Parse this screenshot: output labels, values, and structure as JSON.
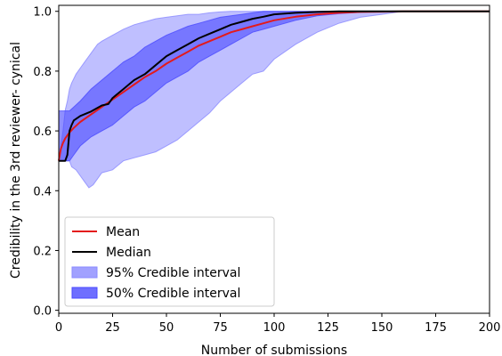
{
  "chart_data": {
    "type": "area",
    "title": "",
    "xlabel": "Number of submissions",
    "ylabel": "Credibility in the 3rd reviewer- cynical",
    "xlim": [
      0,
      200
    ],
    "ylim": [
      -0.01,
      1.02
    ],
    "xticks": [
      "0",
      "25",
      "50",
      "75",
      "100",
      "125",
      "150",
      "175",
      "200"
    ],
    "yticks": [
      "0.0",
      "0.2",
      "0.4",
      "0.6",
      "0.8",
      "1.0"
    ],
    "grid": false,
    "legend_position": "lower-left",
    "series": [
      {
        "name": "Mean",
        "kind": "line",
        "color": "#e31a1c",
        "x": [
          0,
          1,
          2,
          3,
          4,
          5,
          7,
          10,
          15,
          20,
          25,
          30,
          35,
          40,
          45,
          50,
          55,
          60,
          65,
          70,
          75,
          80,
          85,
          90,
          95,
          100,
          110,
          120,
          130,
          140,
          150,
          160,
          170,
          180,
          190,
          200
        ],
        "y": [
          0.5,
          0.54,
          0.56,
          0.575,
          0.585,
          0.595,
          0.61,
          0.63,
          0.655,
          0.68,
          0.705,
          0.73,
          0.755,
          0.78,
          0.8,
          0.825,
          0.845,
          0.865,
          0.885,
          0.9,
          0.915,
          0.93,
          0.94,
          0.95,
          0.96,
          0.97,
          0.982,
          0.99,
          0.995,
          0.998,
          0.999,
          1.0,
          1.0,
          1.0,
          1.0,
          1.0
        ]
      },
      {
        "name": "Median",
        "kind": "line",
        "color": "#000000",
        "x": [
          0,
          3,
          4,
          5,
          6,
          7,
          10,
          15,
          20,
          23,
          25,
          30,
          35,
          40,
          45,
          50,
          55,
          60,
          65,
          70,
          75,
          80,
          85,
          90,
          95,
          100,
          110,
          120,
          130,
          140,
          150,
          160,
          170,
          200
        ],
        "y": [
          0.5,
          0.5,
          0.52,
          0.6,
          0.62,
          0.635,
          0.65,
          0.665,
          0.685,
          0.69,
          0.71,
          0.74,
          0.77,
          0.79,
          0.82,
          0.85,
          0.87,
          0.89,
          0.91,
          0.925,
          0.94,
          0.955,
          0.965,
          0.975,
          0.982,
          0.99,
          0.995,
          0.998,
          1.0,
          1.0,
          1.0,
          1.0,
          1.0,
          1.0
        ]
      },
      {
        "name": "95% Credible interval",
        "kind": "band",
        "color": "#8a8aff",
        "opacity": 0.55,
        "x": [
          0,
          1,
          2,
          3,
          4,
          5,
          6,
          8,
          10,
          12,
          14,
          16,
          18,
          20,
          25,
          30,
          35,
          40,
          45,
          50,
          55,
          60,
          65,
          70,
          75,
          80,
          85,
          90,
          95,
          100,
          110,
          120,
          130,
          140,
          150,
          160,
          170,
          180,
          200
        ],
        "lower": [
          0.5,
          0.5,
          0.5,
          0.5,
          0.5,
          0.5,
          0.48,
          0.47,
          0.45,
          0.43,
          0.41,
          0.42,
          0.44,
          0.46,
          0.47,
          0.5,
          0.51,
          0.52,
          0.53,
          0.55,
          0.57,
          0.6,
          0.63,
          0.66,
          0.7,
          0.73,
          0.76,
          0.79,
          0.8,
          0.84,
          0.89,
          0.93,
          0.96,
          0.98,
          0.99,
          1.0,
          1.0,
          1.0,
          1.0
        ],
        "upper": [
          0.5,
          0.55,
          0.6,
          0.67,
          0.7,
          0.74,
          0.76,
          0.79,
          0.81,
          0.83,
          0.85,
          0.87,
          0.89,
          0.9,
          0.92,
          0.94,
          0.955,
          0.965,
          0.975,
          0.98,
          0.985,
          0.99,
          0.99,
          0.995,
          0.998,
          1.0,
          1.0,
          1.0,
          1.0,
          1.0,
          1.0,
          1.0,
          1.0,
          1.0,
          1.0,
          1.0,
          1.0,
          1.0,
          1.0
        ]
      },
      {
        "name": "50% Credible interval",
        "kind": "band",
        "color": "#4a4aff",
        "opacity": 0.62,
        "x": [
          0,
          1,
          2,
          3,
          5,
          7,
          10,
          15,
          20,
          25,
          30,
          35,
          40,
          45,
          50,
          55,
          60,
          65,
          70,
          75,
          80,
          85,
          90,
          95,
          100,
          110,
          120,
          130,
          140,
          150,
          160,
          200
        ],
        "lower": [
          0.5,
          0.5,
          0.5,
          0.5,
          0.5,
          0.52,
          0.55,
          0.58,
          0.6,
          0.62,
          0.65,
          0.68,
          0.7,
          0.73,
          0.76,
          0.78,
          0.8,
          0.83,
          0.85,
          0.87,
          0.89,
          0.91,
          0.93,
          0.94,
          0.95,
          0.97,
          0.985,
          0.992,
          0.997,
          0.999,
          1.0,
          1.0
        ],
        "upper": [
          0.667,
          0.667,
          0.667,
          0.667,
          0.667,
          0.68,
          0.7,
          0.74,
          0.77,
          0.8,
          0.83,
          0.85,
          0.88,
          0.9,
          0.92,
          0.935,
          0.95,
          0.96,
          0.97,
          0.98,
          0.985,
          0.99,
          0.995,
          1.0,
          1.0,
          1.0,
          1.0,
          1.0,
          1.0,
          1.0,
          1.0,
          1.0
        ]
      }
    ],
    "legend": [
      {
        "label": "Mean",
        "type": "line",
        "color": "#e31a1c"
      },
      {
        "label": "Median",
        "type": "line",
        "color": "#000000"
      },
      {
        "label": "95% Credible interval",
        "type": "patch",
        "color": "#8a8aff"
      },
      {
        "label": "50% Credible interval",
        "type": "patch",
        "color": "#4a4aff"
      }
    ]
  }
}
